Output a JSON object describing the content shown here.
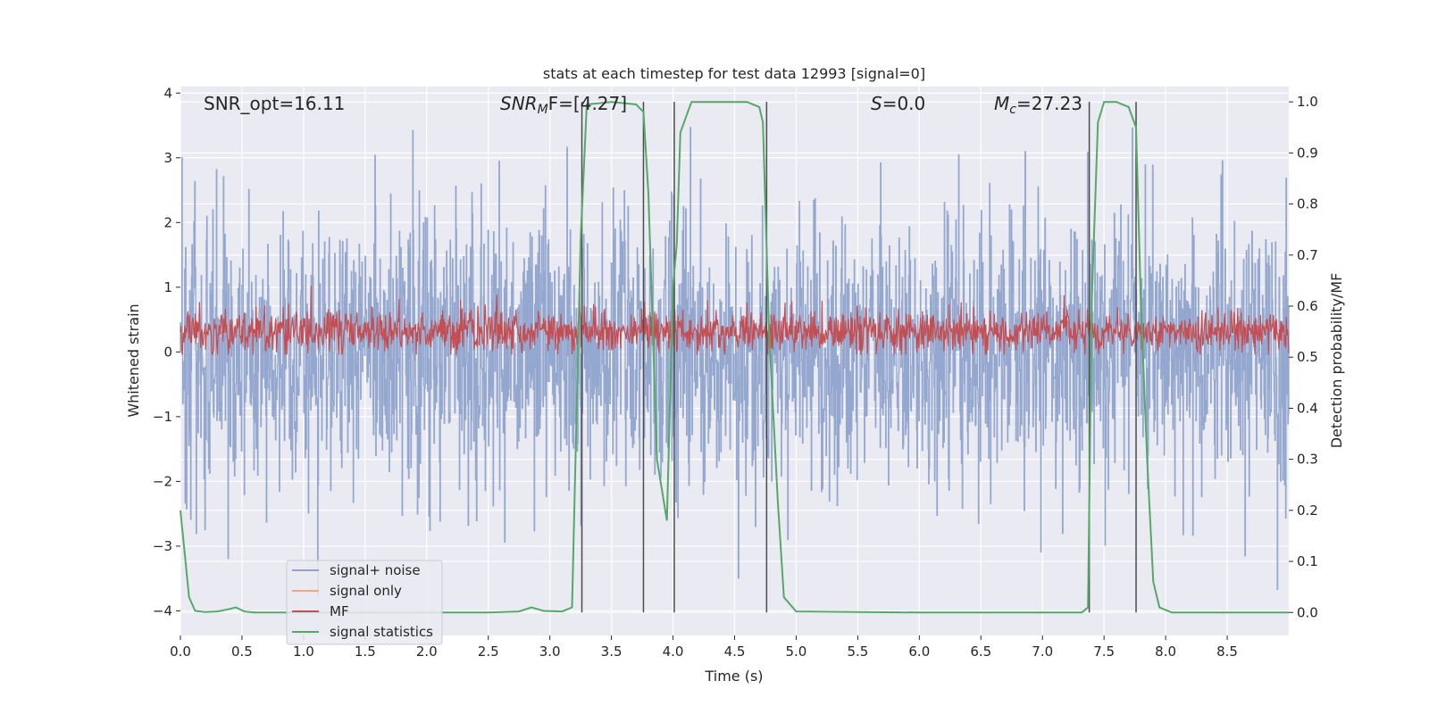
{
  "chart_data": {
    "type": "line",
    "title": "stats at each timestep for test data 12993 [signal=0]",
    "xlabel": "Time (s)",
    "ylabel_left": "Whitened strain",
    "ylabel_right": "Detection probability/MF",
    "xlim": [
      0.0,
      9.0
    ],
    "ylim_left": [
      -4.38,
      4.1
    ],
    "ylim_right": [
      -0.045,
      1.03
    ],
    "x_ticks": [
      "0.0",
      "0.5",
      "1.0",
      "1.5",
      "2.0",
      "2.5",
      "3.0",
      "3.5",
      "4.0",
      "4.5",
      "5.0",
      "5.5",
      "6.0",
      "6.5",
      "7.0",
      "7.5",
      "8.0",
      "8.5"
    ],
    "y_left_ticks": [
      "4",
      "3",
      "2",
      "1",
      "0",
      "−1",
      "−2",
      "−3",
      "−4"
    ],
    "y_right_ticks": [
      "1.0",
      "0.9",
      "0.8",
      "0.7",
      "0.6",
      "0.5",
      "0.4",
      "0.3",
      "0.2",
      "0.1",
      "0.0"
    ],
    "grid": true,
    "legend_position": "lower-left",
    "annotations": {
      "snr_opt": "SNR_opt=16.11",
      "snr_mf": "SNR",
      "snr_mf_sub": "M",
      "snr_mf_rest": "F=[4.27]",
      "s_italic": "S",
      "s_rest": "=0.0",
      "mc_italic": "M",
      "mc_sub": "c",
      "mc_rest": "=27.23"
    },
    "series": [
      {
        "name": "signal+ noise",
        "axis": "left",
        "color": "#8fa3cc",
        "description_values": {
          "typical_low": -2.0,
          "typical_high": 2.0,
          "extreme_low": -4.0,
          "extreme_high": 3.8
        }
      },
      {
        "name": "signal only",
        "axis": "left",
        "color": "#f0a987",
        "values": [
          0,
          0
        ]
      },
      {
        "name": "MF",
        "axis": "right",
        "color": "#c44e52",
        "typical_range": [
          0.52,
          0.6
        ],
        "peak": 0.64
      },
      {
        "name": "signal statistics",
        "axis": "right",
        "color": "#55a868",
        "x": [
          0.0,
          0.07,
          0.12,
          0.2,
          0.3,
          0.4,
          0.45,
          0.52,
          0.6,
          1.0,
          2.0,
          2.5,
          2.75,
          2.85,
          2.95,
          3.1,
          3.18,
          3.25,
          3.3,
          3.5,
          3.7,
          3.76,
          3.8,
          3.87,
          3.95,
          4.0,
          4.03,
          4.06,
          4.15,
          4.6,
          4.7,
          4.73,
          4.78,
          4.85,
          4.9,
          5.0,
          6.0,
          7.0,
          7.32,
          7.37,
          7.4,
          7.45,
          7.5,
          7.6,
          7.7,
          7.76,
          7.8,
          7.85,
          7.9,
          7.95,
          8.05,
          8.5,
          9.0
        ],
        "values": [
          0.2,
          0.03,
          0.003,
          0.001,
          0.002,
          0.007,
          0.01,
          0.002,
          0.0,
          0.0,
          0.0,
          0.0,
          0.002,
          0.01,
          0.003,
          0.002,
          0.01,
          0.73,
          0.995,
          1.0,
          0.995,
          0.98,
          0.82,
          0.3,
          0.18,
          0.64,
          0.72,
          0.94,
          1.0,
          1.0,
          0.99,
          0.96,
          0.55,
          0.22,
          0.03,
          0.002,
          0.0,
          0.0,
          0.0,
          0.01,
          0.61,
          0.96,
          1.0,
          1.0,
          0.99,
          0.95,
          0.6,
          0.3,
          0.06,
          0.01,
          0.0,
          0.0,
          0.0
        ]
      }
    ],
    "vertical_markers_x": [
      3.26,
      3.76,
      4.01,
      4.76,
      7.38,
      7.76
    ],
    "marker_color": "#4c4c4c"
  },
  "colors": {
    "plot_background": "#eaeaf2",
    "grid": "#ffffff"
  }
}
